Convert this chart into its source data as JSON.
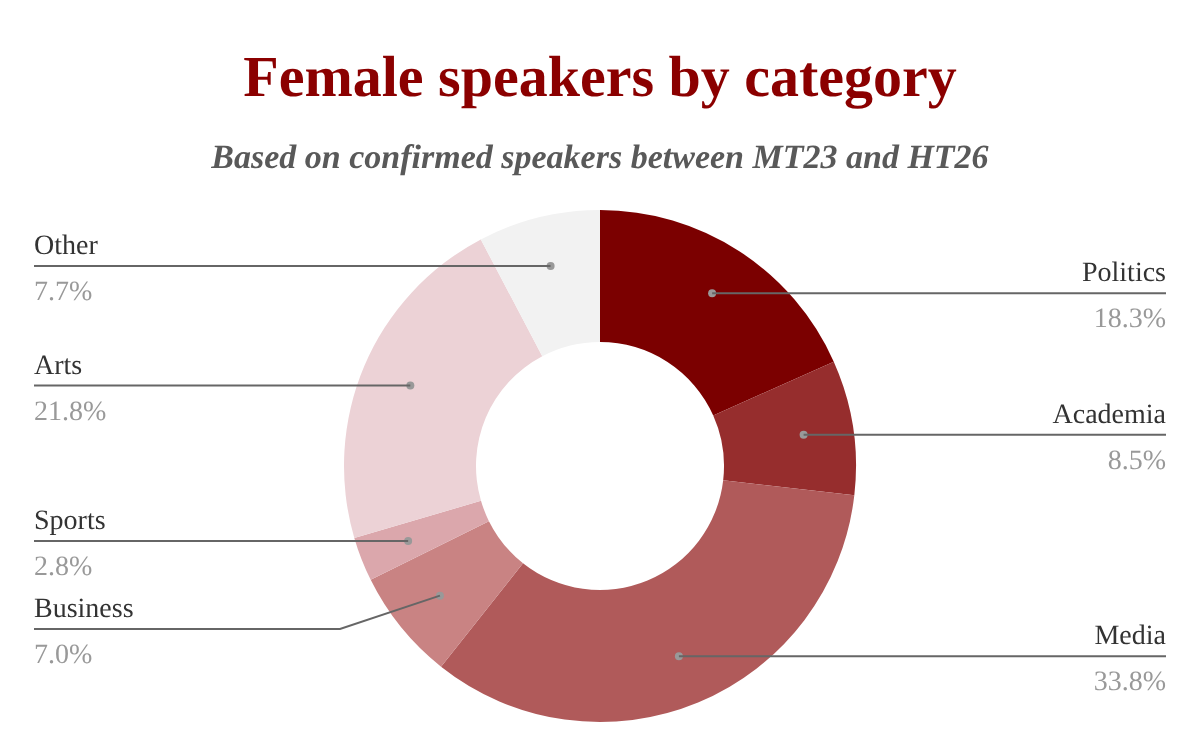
{
  "chart_data": {
    "type": "donut",
    "title": "Female speakers by category",
    "subtitle": "Based on confirmed speakers between MT23 and HT26",
    "categories": [
      "Politics",
      "Academia",
      "Media",
      "Business",
      "Sports",
      "Arts",
      "Other"
    ],
    "values": [
      18.3,
      8.5,
      33.8,
      7.0,
      2.8,
      21.8,
      7.7
    ],
    "value_labels": [
      "18.3%",
      "8.5%",
      "33.8%",
      "7.0%",
      "2.8%",
      "21.8%",
      "7.7%"
    ],
    "colors": [
      "#7b0000",
      "#962d2d",
      "#b05a5a",
      "#c98383",
      "#dba7ac",
      "#ecd2d6",
      "#f2f2f2"
    ],
    "legend": false
  }
}
